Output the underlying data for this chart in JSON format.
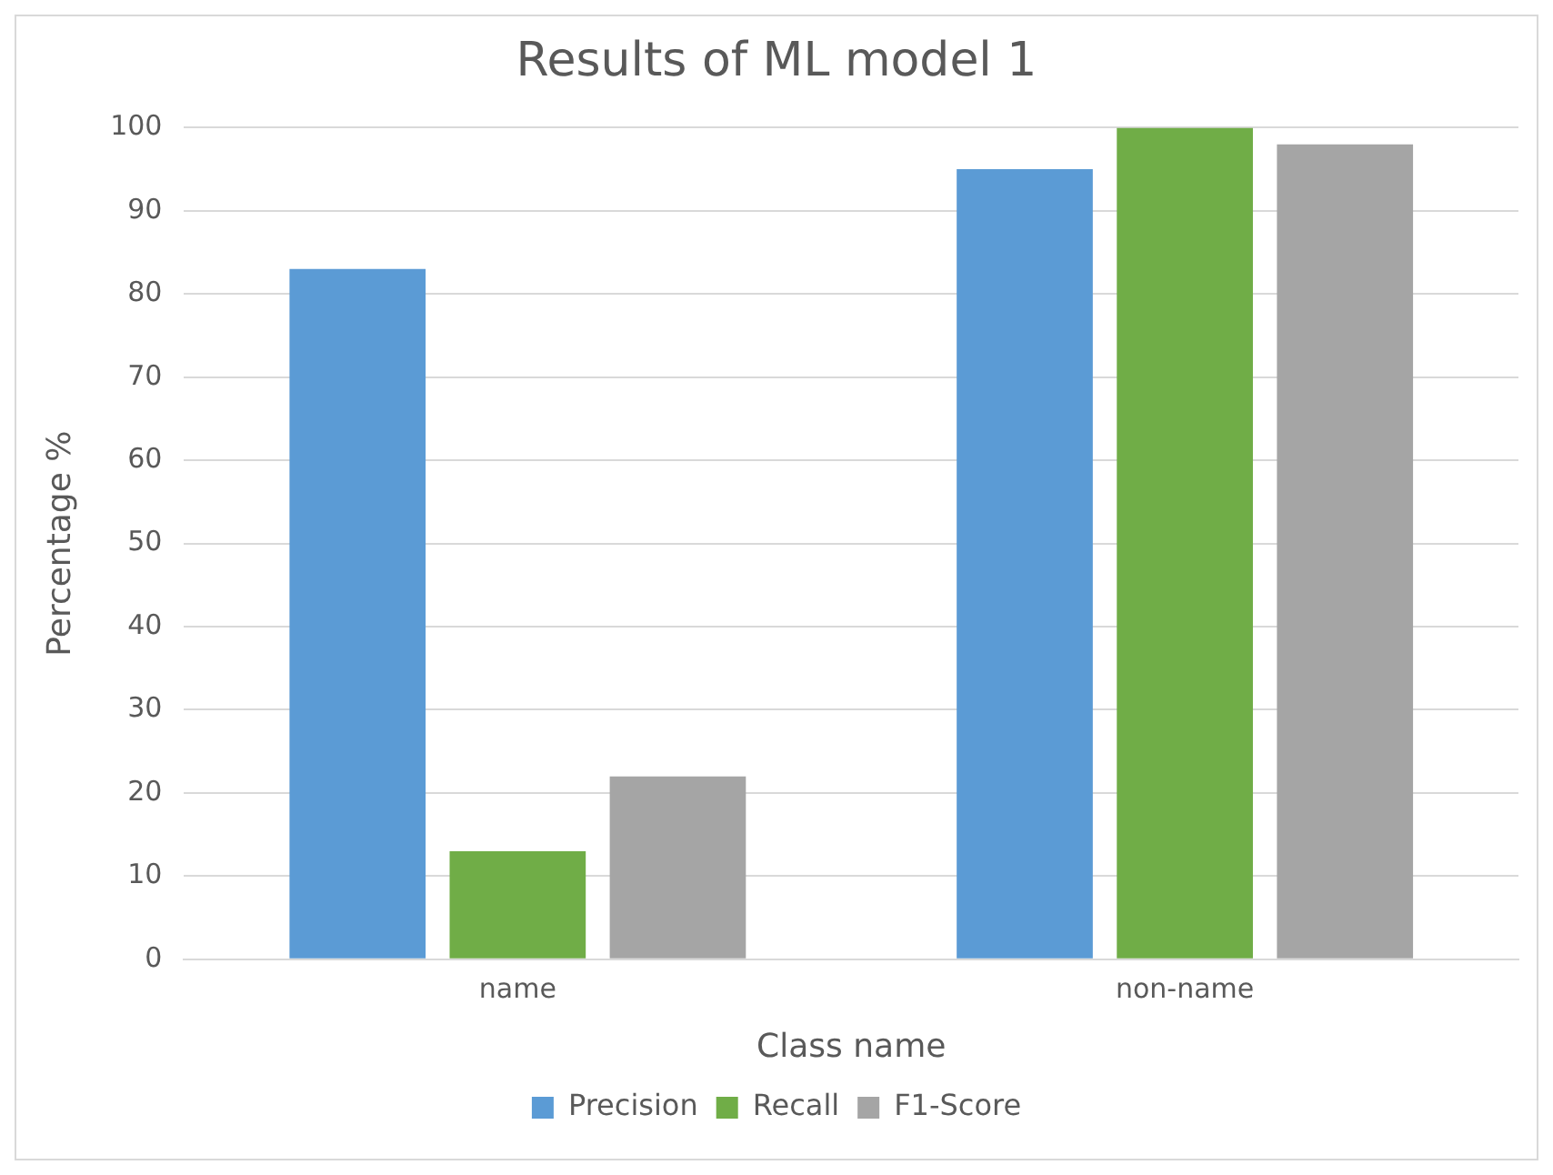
{
  "chart_data": {
    "type": "bar",
    "title": "Results of ML model 1",
    "xlabel": "Class name",
    "ylabel": "Percentage %",
    "categories": [
      "name",
      "non-name"
    ],
    "series": [
      {
        "name": "Precision",
        "color": "#5b9bd5",
        "values": [
          83,
          95
        ]
      },
      {
        "name": "Recall",
        "color": "#70ad47",
        "values": [
          13,
          100
        ]
      },
      {
        "name": "F1-Score",
        "color": "#a5a5a5",
        "values": [
          22,
          98
        ]
      }
    ],
    "ylim": [
      0,
      100
    ],
    "yticks": [
      0,
      10,
      20,
      30,
      40,
      50,
      60,
      70,
      80,
      90,
      100
    ],
    "grid": "y",
    "legend": "bottom"
  }
}
